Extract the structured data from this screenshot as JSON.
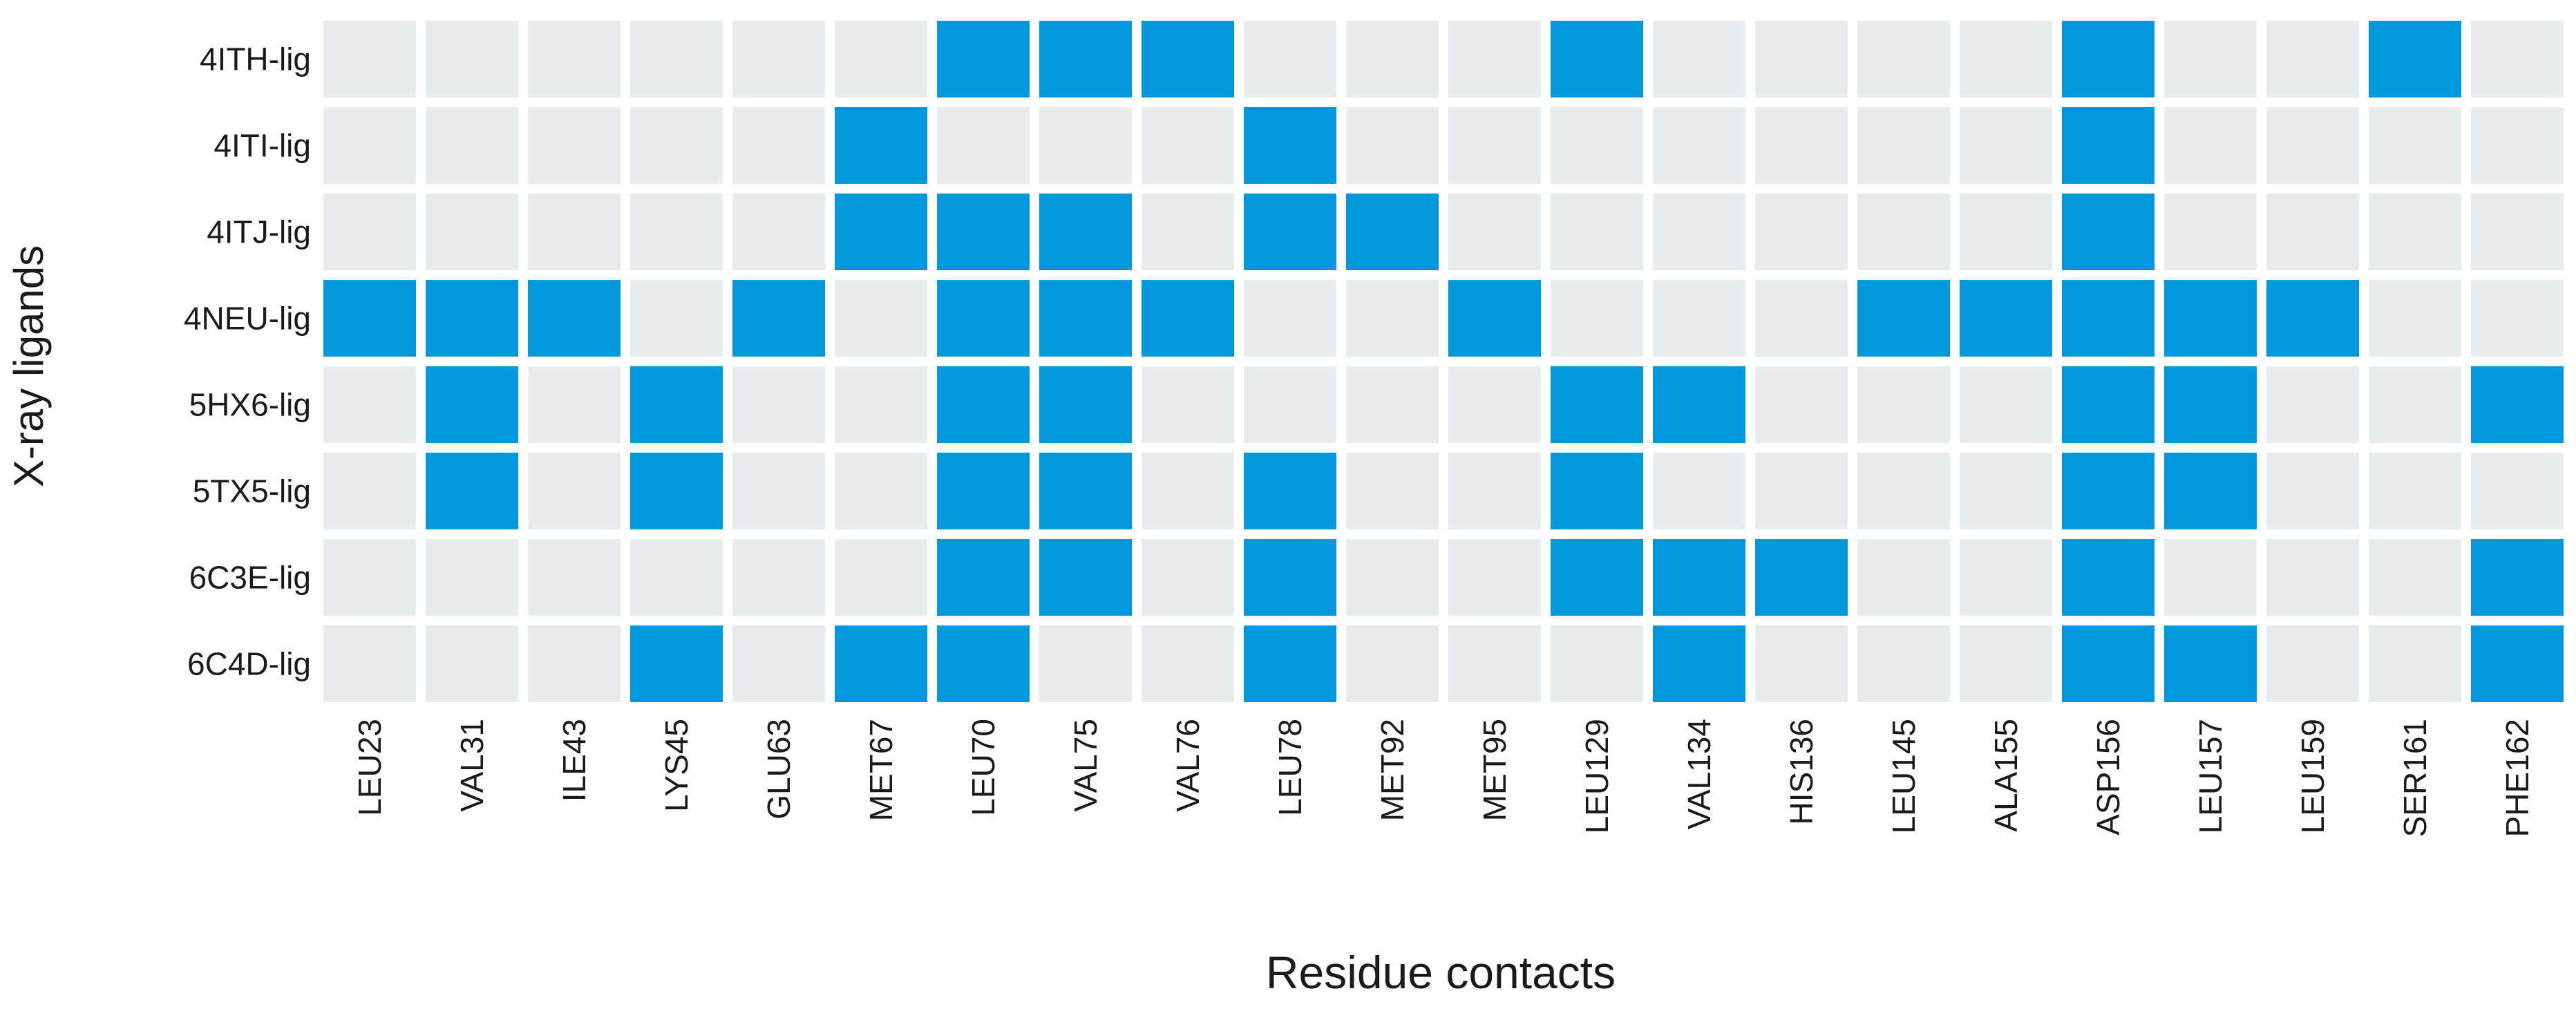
{
  "chart_data": {
    "type": "heatmap",
    "xlabel": "Residue contacts",
    "ylabel": "X-ray ligands",
    "x": [
      "LEU23",
      "VAL31",
      "ILE43",
      "LYS45",
      "GLU63",
      "MET67",
      "LEU70",
      "VAL75",
      "VAL76",
      "LEU78",
      "MET92",
      "MET95",
      "LEU129",
      "VAL134",
      "HIS136",
      "LEU145",
      "ALA155",
      "ASP156",
      "LEU157",
      "LEU159",
      "SER161",
      "PHE162"
    ],
    "y": [
      "4ITH-lig",
      "4ITI-lig",
      "4ITJ-lig",
      "4NEU-lig",
      "5HX6-lig",
      "5TX5-lig",
      "6C3E-lig",
      "6C4D-lig"
    ],
    "values": [
      [
        0,
        0,
        0,
        0,
        0,
        0,
        1,
        1,
        1,
        0,
        0,
        0,
        1,
        0,
        0,
        0,
        0,
        1,
        0,
        0,
        1,
        0
      ],
      [
        0,
        0,
        0,
        0,
        0,
        1,
        0,
        0,
        0,
        1,
        0,
        0,
        0,
        0,
        0,
        0,
        0,
        1,
        0,
        0,
        0,
        0
      ],
      [
        0,
        0,
        0,
        0,
        0,
        1,
        1,
        1,
        0,
        1,
        1,
        0,
        0,
        0,
        0,
        0,
        0,
        1,
        0,
        0,
        0,
        0
      ],
      [
        1,
        1,
        1,
        0,
        1,
        0,
        1,
        1,
        1,
        0,
        0,
        1,
        0,
        0,
        0,
        1,
        1,
        1,
        1,
        1,
        0,
        0
      ],
      [
        0,
        1,
        0,
        1,
        0,
        0,
        1,
        1,
        0,
        0,
        0,
        0,
        1,
        1,
        0,
        0,
        0,
        1,
        1,
        0,
        0,
        1
      ],
      [
        0,
        1,
        0,
        1,
        0,
        0,
        1,
        1,
        0,
        1,
        0,
        0,
        1,
        0,
        0,
        0,
        0,
        1,
        1,
        0,
        0,
        0
      ],
      [
        0,
        0,
        0,
        0,
        0,
        0,
        1,
        1,
        0,
        1,
        0,
        0,
        1,
        1,
        1,
        0,
        0,
        1,
        0,
        0,
        0,
        1
      ],
      [
        0,
        0,
        0,
        1,
        0,
        1,
        1,
        0,
        0,
        1,
        0,
        0,
        0,
        1,
        0,
        0,
        0,
        1,
        1,
        0,
        0,
        1
      ]
    ],
    "colors": {
      "contact": "#0398dc",
      "no_contact": "#e7ecee"
    }
  }
}
